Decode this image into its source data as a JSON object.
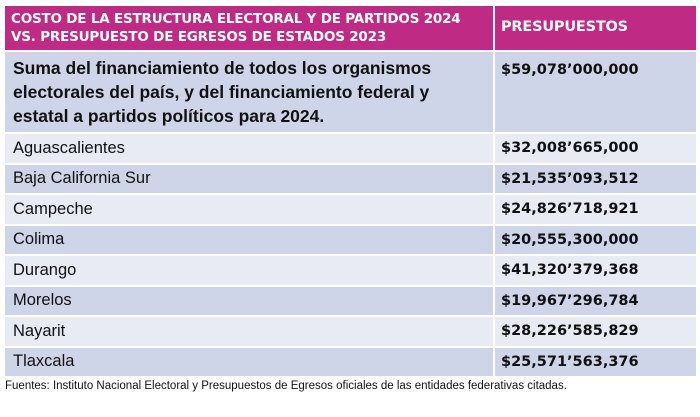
{
  "header": {
    "title_line1": "COSTO DE LA ESTRUCTURA ELECTORAL Y DE PARTIDOS 2024",
    "title_line2": "VS. PRESUPUESTO DE EGRESOS DE ESTADOS 2023",
    "column2": "PRESUPUESTOS"
  },
  "rows": [
    {
      "label": "Suma del financiamiento de todos los organismos electorales del país, y del financiamiento federal y estatal a partidos políticos para 2024.",
      "value": "$59,078’000,000"
    },
    {
      "label": "Aguascalientes",
      "value": "$32,008’665,000"
    },
    {
      "label": "Baja California Sur",
      "value": "$21,535’093,512"
    },
    {
      "label": "Campeche",
      "value": "$24,826’718,921"
    },
    {
      "label": "Colima",
      "value": "$20,555,300,000"
    },
    {
      "label": "Durango",
      "value": "$41,320’379,368"
    },
    {
      "label": "Morelos",
      "value": "$19,967’296,784"
    },
    {
      "label": "Nayarit",
      "value": "$28,226’585,829"
    },
    {
      "label": "Tlaxcala",
      "value": "$25,571’563,376"
    }
  ],
  "footer": "Fuentes: Instituto Nacional Electoral y Presupuestos de Egresos oficiales de las entidades federativas citadas."
}
